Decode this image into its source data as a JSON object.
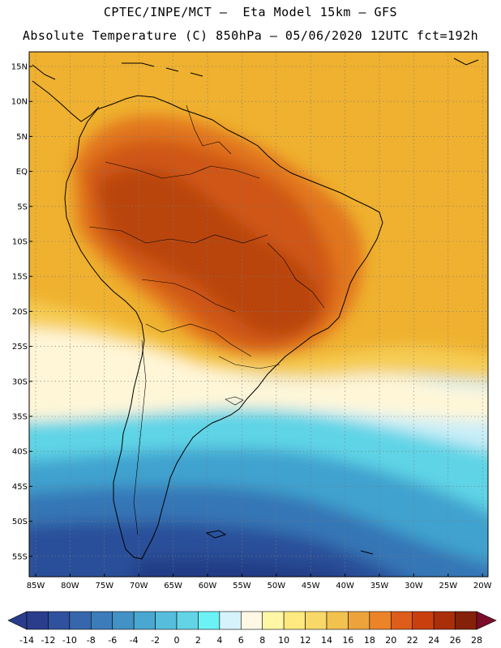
{
  "header": {
    "line1": "CPTEC/INPE/MCT —  Eta Model 15km — GFS",
    "line2": "Absolute Temperature (C) 850hPa — 05/06/2020 12UTC fct=192h"
  },
  "axes": {
    "lat_labels": [
      "15N",
      "10N",
      "5N",
      "EQ",
      "5S",
      "10S",
      "15S",
      "20S",
      "25S",
      "30S",
      "35S",
      "40S",
      "45S",
      "50S",
      "55S"
    ],
    "lon_labels": [
      "85W",
      "80W",
      "75W",
      "70W",
      "65W",
      "60W",
      "55W",
      "50W",
      "45W",
      "40W",
      "35W",
      "30W",
      "25W",
      "20W"
    ]
  },
  "colorbar": {
    "labels": [
      "-14",
      "-12",
      "-10",
      "-8",
      "-6",
      "-4",
      "-2",
      "0",
      "2",
      "4",
      "6",
      "8",
      "10",
      "12",
      "14",
      "16",
      "18",
      "20",
      "22",
      "24",
      "26",
      "28"
    ],
    "colors": [
      "#2a3c8c",
      "#30519e",
      "#3667ad",
      "#3c7cba",
      "#4391c5",
      "#4aa7d0",
      "#56bedc",
      "#62d4e6",
      "#6cf2f5",
      "#d6f2fb",
      "#fff8e4",
      "#fff7a6",
      "#fde97f",
      "#f8d869",
      "#f2c24f",
      "#eda33c",
      "#eb8429",
      "#de5d1a",
      "#c9400e",
      "#a92e0a",
      "#852108"
    ]
  },
  "map_colors": {
    "ocean_default": "#efb12f",
    "hot1": "#e2761e",
    "hot2": "#cf5712",
    "hot3": "#b94510",
    "warm": "#f6cd55",
    "pale": "#fff6d8",
    "cool": "#c9eef8",
    "cyan": "#5fd4e6",
    "teal": "#3fa2cf",
    "blue": "#3576b6",
    "dark": "#2a4f9a",
    "darkest": "#213c86"
  }
}
